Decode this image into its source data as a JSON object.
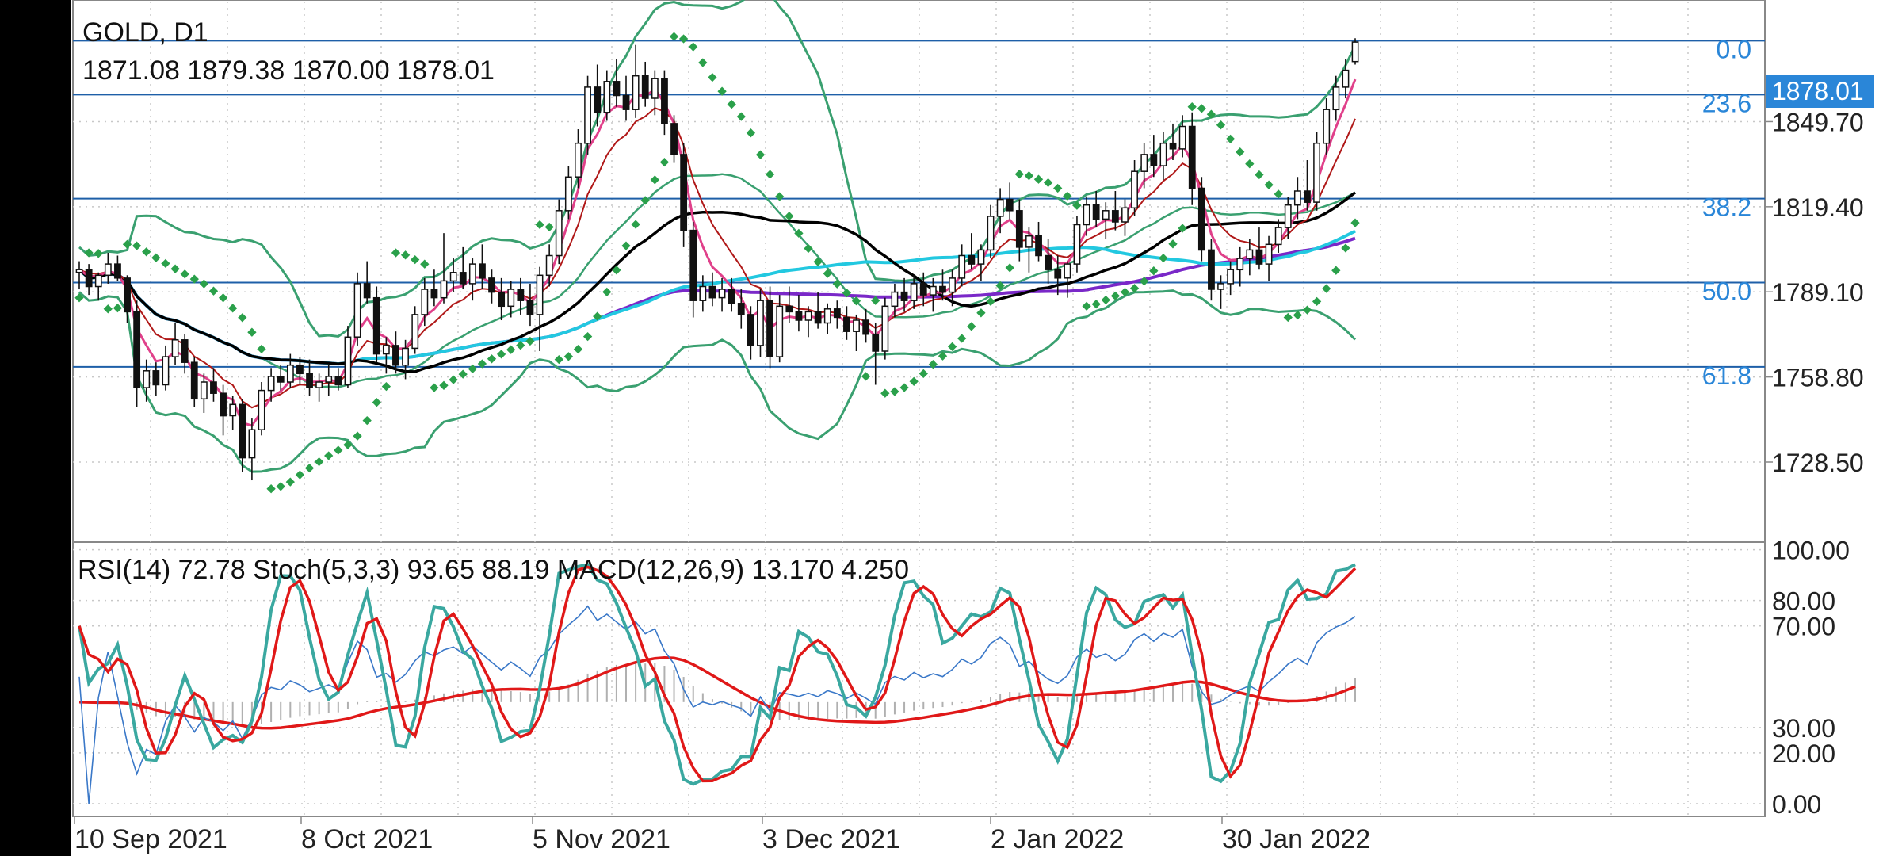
{
  "symbol_title": "GOLD, D1",
  "ohlc_readout": "1871.08 1879.38 1870.00 1878.01",
  "indicator_readout": "RSI(14) 72.78 Stoch(5,3,3) 93.65 88.19 MACD(12,26,9) 13.170 4.250",
  "current_price_label": "1878.01",
  "colors": {
    "background": "#ffffff",
    "grid": "#c8c8c8",
    "axis_text": "#222222",
    "fib_line": "#1e5fa8",
    "fib_label": "#2a86d8",
    "price_tag_bg": "#2a86d8",
    "bollinger": "#3aa070",
    "psar": "#2aa04a",
    "ma_fast": "#e0408a",
    "ma_dark_red": "#b01818",
    "ma_black": "#000000",
    "ma_cyan": "#22c8e0",
    "ma_purple": "#7a28c8",
    "stoch_k": "#3aa8a0",
    "stoch_d": "#e01818",
    "rsi": "#3a78c8",
    "macd_hist": "#b0b0b0"
  },
  "chart_data": [
    {
      "type": "candlestick",
      "title": "GOLD, D1",
      "x_tick_labels": [
        "10 Sep 2021",
        "8 Oct 2021",
        "5 Nov 2021",
        "3 Dec 2021",
        "2 Jan 2022",
        "30 Jan 2022"
      ],
      "y_tick_labels": [
        "1849.70",
        "1819.40",
        "1789.10",
        "1758.80",
        "1728.50"
      ],
      "y_range": [
        1700,
        1893
      ],
      "last_close": 1878.01,
      "fibonacci_levels": [
        {
          "label": "0.0",
          "price": 1878.5
        },
        {
          "label": "23.6",
          "price": 1859.3
        },
        {
          "label": "38.2",
          "price": 1822.3
        },
        {
          "label": "50.0",
          "price": 1792.4
        },
        {
          "label": "61.8",
          "price": 1762.4
        }
      ],
      "candles_approx": [
        [
          1796,
          1800,
          1790,
          1797
        ],
        [
          1797,
          1799,
          1788,
          1791
        ],
        [
          1791,
          1796,
          1786,
          1795
        ],
        [
          1795,
          1803,
          1792,
          1799
        ],
        [
          1799,
          1802,
          1793,
          1794
        ],
        [
          1794,
          1795,
          1778,
          1782
        ],
        [
          1782,
          1786,
          1748,
          1755
        ],
        [
          1755,
          1765,
          1750,
          1761
        ],
        [
          1761,
          1764,
          1752,
          1756
        ],
        [
          1756,
          1770,
          1754,
          1766
        ],
        [
          1766,
          1778,
          1763,
          1772
        ],
        [
          1772,
          1774,
          1760,
          1764
        ],
        [
          1764,
          1766,
          1748,
          1751
        ],
        [
          1751,
          1760,
          1746,
          1757
        ],
        [
          1757,
          1762,
          1750,
          1753
        ],
        [
          1753,
          1756,
          1738,
          1745
        ],
        [
          1745,
          1752,
          1740,
          1749
        ],
        [
          1749,
          1751,
          1725,
          1730
        ],
        [
          1730,
          1744,
          1722,
          1740
        ],
        [
          1740,
          1757,
          1738,
          1754
        ],
        [
          1754,
          1762,
          1750,
          1759
        ],
        [
          1759,
          1763,
          1754,
          1757
        ],
        [
          1757,
          1767,
          1755,
          1763
        ],
        [
          1763,
          1766,
          1756,
          1760
        ],
        [
          1760,
          1765,
          1752,
          1755
        ],
        [
          1755,
          1760,
          1750,
          1757
        ],
        [
          1757,
          1763,
          1752,
          1759
        ],
        [
          1759,
          1762,
          1754,
          1756
        ],
        [
          1756,
          1777,
          1755,
          1773
        ],
        [
          1773,
          1796,
          1770,
          1792
        ],
        [
          1792,
          1800,
          1785,
          1787
        ],
        [
          1787,
          1791,
          1764,
          1767
        ],
        [
          1767,
          1773,
          1760,
          1770
        ],
        [
          1770,
          1775,
          1760,
          1763
        ],
        [
          1763,
          1772,
          1758,
          1769
        ],
        [
          1769,
          1784,
          1767,
          1781
        ],
        [
          1781,
          1794,
          1777,
          1790
        ],
        [
          1790,
          1797,
          1784,
          1787
        ],
        [
          1787,
          1810,
          1785,
          1793
        ],
        [
          1793,
          1801,
          1789,
          1796
        ],
        [
          1796,
          1805,
          1790,
          1792
        ],
        [
          1792,
          1801,
          1786,
          1799
        ],
        [
          1799,
          1806,
          1790,
          1794
        ],
        [
          1794,
          1797,
          1785,
          1789
        ],
        [
          1789,
          1794,
          1779,
          1784
        ],
        [
          1784,
          1793,
          1780,
          1790
        ],
        [
          1790,
          1794,
          1781,
          1786
        ],
        [
          1786,
          1792,
          1777,
          1781
        ],
        [
          1781,
          1798,
          1768,
          1795
        ],
        [
          1795,
          1806,
          1791,
          1802
        ],
        [
          1802,
          1822,
          1799,
          1818
        ],
        [
          1818,
          1834,
          1815,
          1830
        ],
        [
          1830,
          1847,
          1826,
          1842
        ],
        [
          1842,
          1866,
          1838,
          1862
        ],
        [
          1862,
          1870,
          1848,
          1853
        ],
        [
          1853,
          1868,
          1850,
          1864
        ],
        [
          1864,
          1872,
          1855,
          1859
        ],
        [
          1859,
          1866,
          1850,
          1854
        ],
        [
          1854,
          1877,
          1851,
          1866
        ],
        [
          1866,
          1871,
          1855,
          1858
        ],
        [
          1858,
          1868,
          1852,
          1865
        ],
        [
          1865,
          1868,
          1845,
          1849
        ],
        [
          1849,
          1852,
          1835,
          1838
        ],
        [
          1838,
          1842,
          1805,
          1811
        ],
        [
          1811,
          1814,
          1780,
          1786
        ],
        [
          1786,
          1795,
          1782,
          1791
        ],
        [
          1791,
          1796,
          1784,
          1787
        ],
        [
          1787,
          1794,
          1782,
          1790
        ],
        [
          1790,
          1794,
          1782,
          1785
        ],
        [
          1785,
          1790,
          1776,
          1781
        ],
        [
          1781,
          1784,
          1765,
          1770
        ],
        [
          1770,
          1790,
          1766,
          1786
        ],
        [
          1786,
          1791,
          1762,
          1766
        ],
        [
          1766,
          1788,
          1764,
          1784
        ],
        [
          1784,
          1791,
          1778,
          1782
        ],
        [
          1782,
          1788,
          1775,
          1779
        ],
        [
          1779,
          1784,
          1773,
          1782
        ],
        [
          1782,
          1789,
          1776,
          1778
        ],
        [
          1778,
          1785,
          1774,
          1783
        ],
        [
          1783,
          1786,
          1776,
          1780
        ],
        [
          1780,
          1784,
          1772,
          1775
        ],
        [
          1775,
          1781,
          1768,
          1779
        ],
        [
          1779,
          1783,
          1771,
          1774
        ],
        [
          1774,
          1778,
          1756,
          1768
        ],
        [
          1768,
          1787,
          1765,
          1784
        ],
        [
          1784,
          1792,
          1780,
          1789
        ],
        [
          1789,
          1794,
          1782,
          1786
        ],
        [
          1786,
          1795,
          1783,
          1792
        ],
        [
          1792,
          1796,
          1784,
          1788
        ],
        [
          1788,
          1794,
          1782,
          1791
        ],
        [
          1791,
          1797,
          1786,
          1789
        ],
        [
          1789,
          1797,
          1784,
          1794
        ],
        [
          1794,
          1806,
          1791,
          1802
        ],
        [
          1802,
          1810,
          1797,
          1799
        ],
        [
          1799,
          1806,
          1793,
          1804
        ],
        [
          1804,
          1820,
          1801,
          1816
        ],
        [
          1816,
          1826,
          1810,
          1822
        ],
        [
          1822,
          1828,
          1815,
          1818
        ],
        [
          1818,
          1822,
          1800,
          1805
        ],
        [
          1805,
          1812,
          1796,
          1809
        ],
        [
          1809,
          1814,
          1800,
          1802
        ],
        [
          1802,
          1808,
          1792,
          1797
        ],
        [
          1797,
          1802,
          1788,
          1794
        ],
        [
          1794,
          1800,
          1787,
          1799
        ],
        [
          1799,
          1816,
          1796,
          1813
        ],
        [
          1813,
          1823,
          1809,
          1820
        ],
        [
          1820,
          1825,
          1812,
          1815
        ],
        [
          1815,
          1821,
          1808,
          1818
        ],
        [
          1818,
          1825,
          1811,
          1814
        ],
        [
          1814,
          1822,
          1809,
          1819
        ],
        [
          1819,
          1836,
          1816,
          1832
        ],
        [
          1832,
          1842,
          1826,
          1838
        ],
        [
          1838,
          1845,
          1830,
          1834
        ],
        [
          1834,
          1846,
          1829,
          1842
        ],
        [
          1842,
          1849,
          1836,
          1840
        ],
        [
          1840,
          1852,
          1837,
          1848
        ],
        [
          1848,
          1853,
          1820,
          1826
        ],
        [
          1826,
          1830,
          1800,
          1804
        ],
        [
          1804,
          1808,
          1786,
          1790
        ],
        [
          1790,
          1795,
          1783,
          1792
        ],
        [
          1792,
          1800,
          1788,
          1797
        ],
        [
          1797,
          1805,
          1791,
          1801
        ],
        [
          1801,
          1808,
          1795,
          1804
        ],
        [
          1804,
          1812,
          1797,
          1799
        ],
        [
          1799,
          1809,
          1793,
          1806
        ],
        [
          1806,
          1815,
          1803,
          1812
        ],
        [
          1812,
          1823,
          1808,
          1820
        ],
        [
          1820,
          1830,
          1815,
          1825
        ],
        [
          1825,
          1836,
          1818,
          1821
        ],
        [
          1821,
          1846,
          1818,
          1842
        ],
        [
          1842,
          1858,
          1838,
          1854
        ],
        [
          1854,
          1866,
          1850,
          1862
        ],
        [
          1862,
          1872,
          1858,
          1868
        ],
        [
          1871.08,
          1879.38,
          1870,
          1878.01
        ]
      ]
    },
    {
      "type": "line",
      "title": "RSI(14) 72.78 Stoch(5,3,3) 93.65 88.19 MACD(12,26,9) 13.170 4.250",
      "y_tick_labels": [
        "100.00",
        "80.00",
        "70.00",
        "30.00",
        "20.00",
        "0.00"
      ],
      "y_range": [
        -5,
        103
      ],
      "series": [
        {
          "name": "RSI(14)",
          "last": 72.78
        },
        {
          "name": "Stoch %K",
          "last": 93.65
        },
        {
          "name": "Stoch %D",
          "last": 88.19
        },
        {
          "name": "MACD",
          "last": 13.17
        },
        {
          "name": "Signal",
          "last": 4.25
        }
      ]
    }
  ]
}
